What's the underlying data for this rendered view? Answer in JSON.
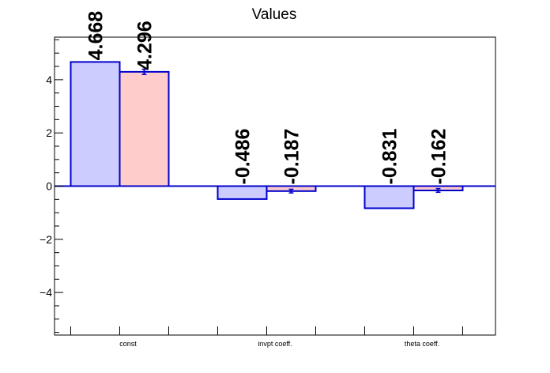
{
  "chart_data": {
    "type": "bar",
    "title": "Values",
    "categories": [
      "const",
      "invpt coeff.",
      "theta coeff."
    ],
    "series": [
      {
        "values": [
          4.668,
          -0.486,
          -0.831
        ],
        "errors": [
          0,
          0,
          0
        ],
        "labels": [
          "4.668",
          "-0.486",
          "-0.831"
        ],
        "fill": "#ccccff",
        "stroke": "#0000cc"
      },
      {
        "values": [
          4.296,
          -0.187,
          -0.162
        ],
        "errors": [
          0.1,
          0.07,
          0.07
        ],
        "labels": [
          "4.296",
          "-0.187",
          "-0.162"
        ],
        "fill": "#ffcccc",
        "stroke": "#0000cc"
      }
    ],
    "ylim": [
      -5.6,
      5.6
    ],
    "yticks": [
      -4,
      -2,
      0,
      2,
      4
    ],
    "ytick_labels": [
      "−4",
      "−2",
      "0",
      "2",
      "4"
    ],
    "grid": false,
    "legend": "none"
  }
}
